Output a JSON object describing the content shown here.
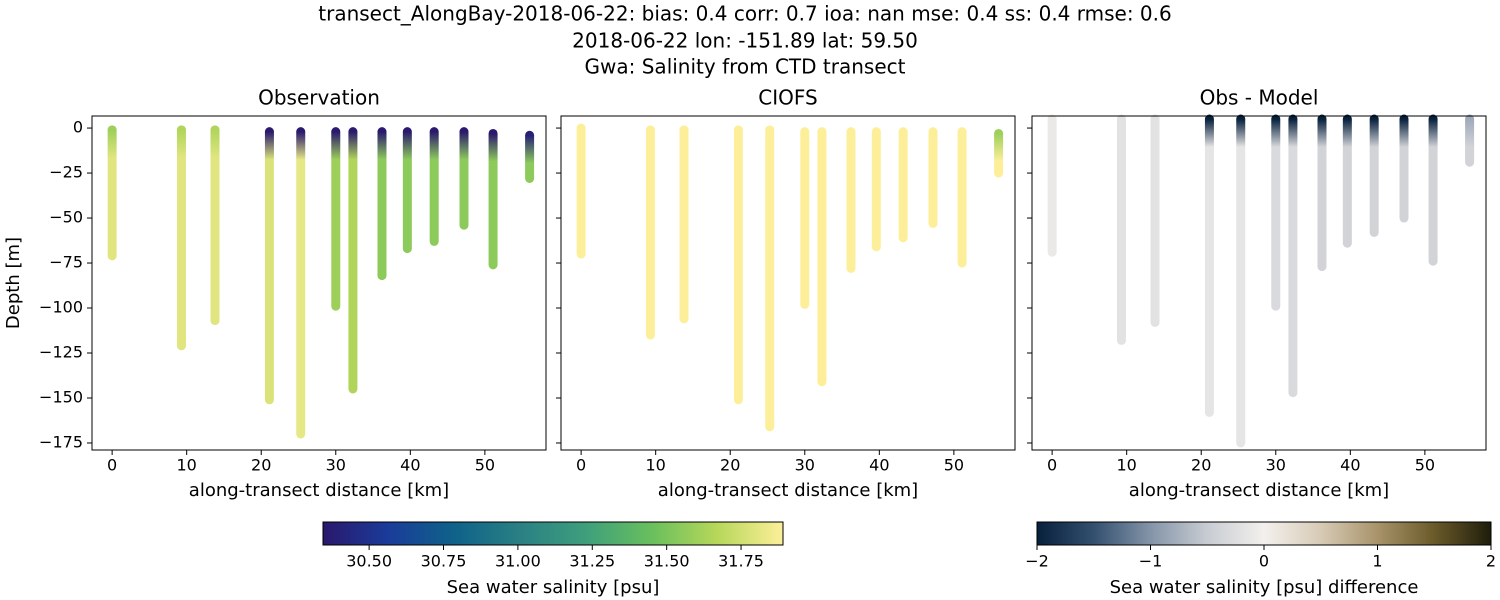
{
  "title_lines": [
    "transect_AlongBay-2018-06-22: bias: 0.4  corr: 0.7  ioa: nan  mse: 0.4  ss: 0.4  rmse: 0.6",
    "2018-06-22 lon: -151.89 lat: 59.50",
    "Gwa: Salinity from CTD transect"
  ],
  "chart_data": [
    {
      "type": "scatter",
      "title": "Observation",
      "xlabel": "along-transect distance [km]",
      "ylabel": "Depth [m]",
      "colormap": "haline",
      "x": [
        0,
        9.3,
        13.8,
        21.1,
        25.3,
        30,
        32.3,
        36.2,
        39.6,
        43.2,
        47.2,
        51.1,
        56
      ],
      "depth_top": [
        -1,
        -1,
        -1,
        -2,
        -2,
        -2,
        -2,
        -2,
        -2,
        -2,
        -2,
        -3,
        -4
      ],
      "depth_bottom": [
        -71,
        -121,
        -107,
        -151,
        -170,
        -99,
        -145,
        -82,
        -67,
        -63,
        -54,
        -76,
        -28
      ],
      "top_values": [
        31.6,
        31.65,
        31.65,
        30.35,
        30.35,
        30.35,
        30.35,
        30.35,
        30.35,
        30.35,
        30.35,
        30.35,
        30.4
      ],
      "bottom_values": [
        31.8,
        31.8,
        31.8,
        31.78,
        31.82,
        31.6,
        31.65,
        31.55,
        31.55,
        31.55,
        31.55,
        31.55,
        31.55
      ],
      "xlim": [
        -2.7,
        58.2
      ],
      "ylim": [
        -178.9,
        6.7
      ],
      "xticks": [
        0,
        10,
        20,
        30,
        40,
        50
      ],
      "yticks": [
        0,
        {
          "value": -25,
          "label": "−25"
        },
        {
          "value": -50,
          "label": "−50"
        },
        {
          "value": -75,
          "label": "−75"
        },
        {
          "value": -100,
          "label": "−100"
        },
        {
          "value": -125,
          "label": "−125"
        },
        {
          "value": -150,
          "label": "−150"
        },
        {
          "value": -175,
          "label": "−175"
        }
      ],
      "ytick_labels": true
    },
    {
      "type": "scatter",
      "title": "CIOFS",
      "xlabel": "along-transect distance [km]",
      "colormap": "haline",
      "x": [
        0,
        9.3,
        13.8,
        21.1,
        25.3,
        30,
        32.3,
        36.2,
        39.6,
        43.2,
        47.2,
        51.1,
        56
      ],
      "depth_top": [
        0,
        -1,
        -1,
        -1,
        -1,
        -2,
        -2,
        -2,
        -2,
        -2,
        -2,
        -2,
        -3
      ],
      "depth_bottom": [
        -70,
        -115,
        -106,
        -151,
        -166,
        -98,
        -141,
        -78,
        -66,
        -61,
        -53,
        -75,
        -25
      ],
      "top_values": [
        31.97,
        31.97,
        31.97,
        31.97,
        31.97,
        31.97,
        31.97,
        31.97,
        31.97,
        31.97,
        31.97,
        31.97,
        31.6
      ],
      "bottom_values": [
        31.97,
        31.97,
        31.97,
        31.97,
        31.97,
        31.97,
        31.97,
        31.97,
        31.97,
        31.97,
        31.97,
        31.97,
        31.97
      ],
      "xlim": [
        -2.7,
        58.2
      ],
      "ylim": [
        -178.9,
        6.7
      ],
      "xticks": [
        0,
        10,
        20,
        30,
        40,
        50
      ],
      "yticks": [
        0,
        -25,
        -50,
        -75,
        -100,
        -125,
        -150,
        -175
      ],
      "ytick_labels": false
    },
    {
      "type": "scatter",
      "title": "Obs - Model",
      "xlabel": "along-transect distance [km]",
      "colormap": "diff",
      "x": [
        0,
        9.3,
        13.8,
        21.1,
        25.3,
        30,
        32.3,
        36.2,
        39.6,
        43.2,
        47.2,
        51.1,
        56
      ],
      "depth_top": [
        5,
        5,
        5,
        5,
        5,
        5,
        5,
        5,
        5,
        5,
        5,
        5,
        5
      ],
      "depth_bottom": [
        -69,
        -118,
        -108,
        -158,
        -175,
        -99,
        -147,
        -77,
        -64,
        -58,
        -50,
        -74,
        -19
      ],
      "top_values": [
        -0.1,
        -0.2,
        -0.2,
        -2,
        -2,
        -2,
        -2,
        -2,
        -2,
        -2,
        -2,
        -2,
        -0.8
      ],
      "bottom_values": [
        -0.1,
        -0.2,
        -0.2,
        -0.15,
        -0.15,
        -0.3,
        -0.3,
        -0.4,
        -0.4,
        -0.4,
        -0.4,
        -0.4,
        -0.4
      ],
      "xlim": [
        -2.7,
        58.2
      ],
      "ylim": [
        -178.9,
        6.7
      ],
      "xticks": [
        0,
        10,
        20,
        30,
        40,
        50
      ],
      "yticks": [
        0,
        -25,
        -50,
        -75,
        -100,
        -125,
        -150,
        -175
      ],
      "ytick_labels": false
    }
  ],
  "colorbars": {
    "haline": {
      "label": "Sea water salinity [psu]",
      "clim": [
        30.345,
        31.891
      ],
      "ticks": [
        {
          "value": 30.5,
          "label": "30.50"
        },
        {
          "value": 30.75,
          "label": "30.75"
        },
        {
          "value": 31.0,
          "label": "31.00"
        },
        {
          "value": 31.25,
          "label": "31.25"
        },
        {
          "value": 31.5,
          "label": "31.50"
        },
        {
          "value": 31.75,
          "label": "31.75"
        }
      ],
      "colors": [
        "#2a186c",
        "#1a3c9a",
        "#0f6289",
        "#2a8084",
        "#3e9f7c",
        "#69bf5d",
        "#b7d75a",
        "#fdef9a"
      ]
    },
    "diff": {
      "label": "Sea water salinity [psu] difference",
      "clim": [
        -2,
        2
      ],
      "ticks": [
        {
          "value": -2,
          "label": "−2"
        },
        {
          "value": -1,
          "label": "−1"
        },
        0,
        1,
        2
      ],
      "colors": [
        "#07203c",
        "#33506f",
        "#8494a8",
        "#c8ccd2",
        "#f3f0ed",
        "#d7cbb6",
        "#a8936a",
        "#6a5a2a",
        "#1e1d0b"
      ]
    }
  }
}
